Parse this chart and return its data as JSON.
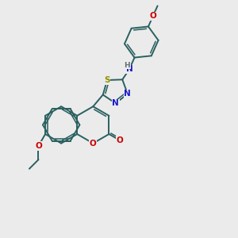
{
  "bg": "#ebebeb",
  "bc": "#2a6060",
  "bw": 1.4,
  "N_color": "#1818cc",
  "O_color": "#cc0000",
  "S_color": "#909000",
  "H_color": "#607070",
  "fs": 7.5,
  "dpi": 100,
  "xlim": [
    0,
    10
  ],
  "ylim": [
    0,
    10
  ]
}
